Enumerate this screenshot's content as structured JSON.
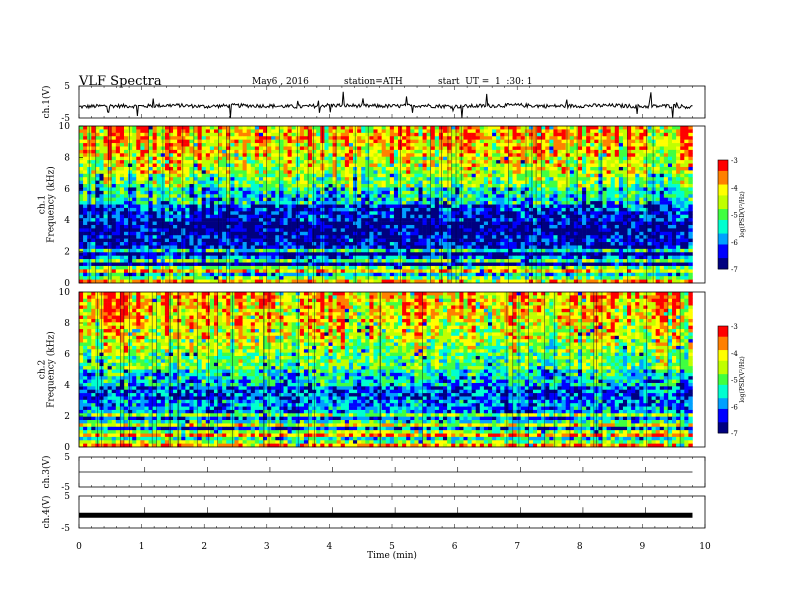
{
  "header": {
    "title": "VLF  Spectra",
    "date": "May6 , 2016",
    "station": "station=ATH",
    "start": "start  UT =  1  :30: 1"
  },
  "chart_data": [
    {
      "type": "line",
      "ylabel": "ch.1(V)",
      "yticks": [
        "5",
        "-5"
      ],
      "ylim": [
        -5,
        5
      ],
      "xlim": [
        0,
        10
      ],
      "x": [
        0,
        0.5,
        1,
        1.5,
        2,
        2.5,
        3,
        3.5,
        4,
        4.5,
        5,
        5.5,
        6,
        6.5,
        7,
        7.5,
        8,
        8.5,
        9,
        9.5,
        9.8
      ],
      "values": [
        -1.5,
        -1.2,
        -1.3,
        -1.0,
        -1.4,
        -1.1,
        -1.2,
        -1.5,
        -1.0,
        -1.2,
        -1.3,
        -1.1,
        -1.4,
        -1.2,
        -1.0,
        -1.3,
        -1.2,
        -1.1,
        -1.4,
        -1.2,
        -1.6
      ],
      "color": "#000000"
    },
    {
      "type": "heatmap",
      "ylabel": "ch.1\nFrequency (kHz)",
      "yticks": [
        "0",
        "2",
        "4",
        "6",
        "8",
        "10"
      ],
      "ylim": [
        0,
        10
      ],
      "xlim": [
        0,
        10
      ],
      "data_end_min": 9.8,
      "colorbar": {
        "label": "log(PSD(V²/Hz)",
        "ticks": [
          "-3",
          "-4",
          "-5",
          "-6",
          "-7"
        ],
        "range": [
          -7,
          -3
        ]
      },
      "freq_khz": [
        0.5,
        1.5,
        2.5,
        3.5,
        4.5,
        5.5,
        6.5,
        7.5,
        8.5,
        9.5
      ],
      "mean_log_psd": [
        -5.2,
        -6.3,
        -6.6,
        -6.8,
        -6.5,
        -5.8,
        -5.2,
        -4.8,
        -4.5,
        -4.4
      ]
    },
    {
      "type": "heatmap",
      "ylabel": "ch.2\nFrequency (kHz)",
      "yticks": [
        "0",
        "2",
        "4",
        "6",
        "8",
        "10"
      ],
      "ylim": [
        0,
        10
      ],
      "xlim": [
        0,
        10
      ],
      "data_end_min": 9.8,
      "colorbar": {
        "label": "log(PSD(V²/Hz)",
        "ticks": [
          "-3",
          "-4",
          "-5",
          "-6",
          "-7"
        ],
        "range": [
          -7,
          -3
        ]
      },
      "freq_khz": [
        0.5,
        1.5,
        2.5,
        3.5,
        4.5,
        5.5,
        6.5,
        7.5,
        8.5,
        9.5
      ],
      "mean_log_psd": [
        -5.0,
        -5.6,
        -6.0,
        -6.2,
        -5.7,
        -5.2,
        -4.9,
        -4.6,
        -4.4,
        -4.3
      ]
    },
    {
      "type": "line",
      "ylabel": "ch.3(V)",
      "yticks": [
        "5",
        "-5"
      ],
      "ylim": [
        -5,
        5
      ],
      "xlim": [
        0,
        10
      ],
      "x": [
        0,
        9.8
      ],
      "values": [
        0,
        0
      ],
      "color": "#000000"
    },
    {
      "type": "line",
      "ylabel": "ch.4(V)",
      "yticks": [
        "5",
        "-5"
      ],
      "ylim": [
        -5,
        5
      ],
      "xlim": [
        0,
        10
      ],
      "x": [
        0,
        9.8
      ],
      "values": [
        -1,
        -1
      ],
      "color": "#000000"
    }
  ],
  "xaxis": {
    "label": "Time  (min)",
    "ticks": [
      "0",
      "1",
      "2",
      "3",
      "4",
      "5",
      "6",
      "7",
      "8",
      "9",
      "10"
    ]
  },
  "colormap": [
    "#000080",
    "#0000ff",
    "#00a0ff",
    "#00ffd0",
    "#40ff40",
    "#c0ff00",
    "#ffff00",
    "#ff8000",
    "#ff0000",
    "#ffffff"
  ]
}
